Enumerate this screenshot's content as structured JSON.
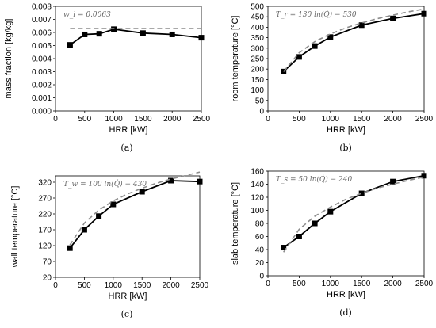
{
  "chart_data": [
    {
      "type": "line",
      "caption": "(a)",
      "equation": "w_i = 0.0063",
      "xlabel": "HRR [kW]",
      "ylabel": "mass fraction [kg/kg]",
      "xlim": [
        0,
        2500
      ],
      "xticks": [
        "0",
        "500",
        "1000",
        "1500",
        "2000",
        "2500"
      ],
      "ylim": [
        0,
        0.008
      ],
      "yticks": [
        "0.000",
        "0.001",
        "0.002",
        "0.003",
        "0.004",
        "0.005",
        "0.006",
        "0.007",
        "0.008"
      ],
      "series": [
        {
          "style": "measured",
          "x": [
            250,
            500,
            750,
            1000,
            1500,
            2000,
            2500
          ],
          "y": [
            0.00505,
            0.00585,
            0.0059,
            0.00625,
            0.00595,
            0.00585,
            0.0056
          ]
        },
        {
          "style": "fit",
          "x": [
            250,
            2500
          ],
          "y": [
            0.0063,
            0.0063
          ]
        }
      ]
    },
    {
      "type": "line",
      "caption": "(b)",
      "equation": "T_r = 130 ln(Q̇) − 530",
      "xlabel": "HRR [kW]",
      "ylabel": "room temperature [°C]",
      "xlim": [
        0,
        2500
      ],
      "xticks": [
        "0",
        "500",
        "1000",
        "1500",
        "2000",
        "2500"
      ],
      "ylim": [
        0,
        500
      ],
      "yticks": [
        "0",
        "50",
        "100",
        "150",
        "200",
        "250",
        "300",
        "350",
        "400",
        "450",
        "500"
      ],
      "series": [
        {
          "style": "measured",
          "x": [
            250,
            500,
            750,
            1000,
            1500,
            2000,
            2500
          ],
          "y": [
            188,
            258,
            310,
            353,
            410,
            442,
            465
          ]
        },
        {
          "style": "fit",
          "x": [
            250,
            500,
            750,
            1000,
            1250,
            1500,
            1750,
            2000,
            2250,
            2500
          ],
          "y": [
            188,
            278,
            331,
            368,
            397,
            421,
            441,
            458,
            474,
            487
          ]
        }
      ]
    },
    {
      "type": "line",
      "caption": "(c)",
      "equation": "T_w = 100 ln(Q̇) − 430",
      "xlabel": "HRR [kW]",
      "ylabel": "wall temperature [°C]",
      "xlim": [
        0,
        2500
      ],
      "xticks": [
        "0",
        "500",
        "1000",
        "1500",
        "2000",
        "2500"
      ],
      "ylim": [
        20,
        340
      ],
      "yticks": [
        "20",
        "70",
        "120",
        "170",
        "220",
        "270",
        "320"
      ],
      "series": [
        {
          "style": "measured",
          "x": [
            250,
            500,
            750,
            1000,
            1500,
            2000,
            2500
          ],
          "y": [
            112,
            170,
            213,
            250,
            290,
            325,
            322
          ]
        },
        {
          "style": "fit",
          "x": [
            250,
            500,
            750,
            1000,
            1250,
            1500,
            1750,
            2000,
            2250,
            2500
          ],
          "y": [
            122,
            191,
            232,
            261,
            283,
            301,
            317,
            330,
            341,
            352
          ]
        }
      ]
    },
    {
      "type": "line",
      "caption": "(d)",
      "equation": "T_s = 50 ln(Q̇) − 240",
      "xlabel": "HRR [kW]",
      "ylabel": "slab temperature [°C]",
      "xlim": [
        0,
        2500
      ],
      "xticks": [
        "0",
        "500",
        "1000",
        "1500",
        "2000",
        "2500"
      ],
      "ylim": [
        0,
        160
      ],
      "yticks": [
        "0",
        "20",
        "40",
        "60",
        "80",
        "100",
        "120",
        "140",
        "160"
      ],
      "series": [
        {
          "style": "measured",
          "x": [
            250,
            500,
            750,
            1000,
            1500,
            2000,
            2500
          ],
          "y": [
            43,
            60,
            80,
            98,
            126,
            144,
            153
          ]
        },
        {
          "style": "fit",
          "x": [
            250,
            500,
            750,
            1000,
            1250,
            1500,
            1750,
            2000,
            2250,
            2500
          ],
          "y": [
            36,
            71,
            91,
            105,
            117,
            126,
            134,
            140,
            146,
            151
          ]
        }
      ]
    }
  ],
  "colors": {
    "measured": "#000000",
    "fit": "#8c8c8c"
  }
}
